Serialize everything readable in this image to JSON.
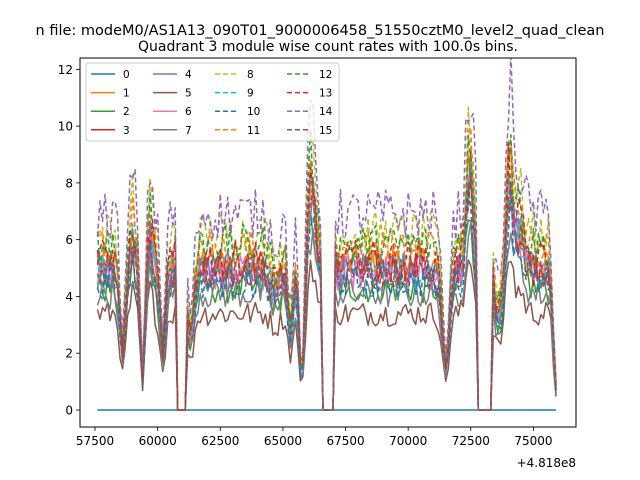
{
  "chart_data": {
    "type": "line",
    "suptitle": "n file: modeM0/AS1A13_090T01_9000006458_51550cztM0_level2_quad_clean",
    "title": "Quadrant 3 module wise count rates with 100.0s bins.",
    "xlabel": "",
    "ylabel": "",
    "x_offset_label": "+4.818e8",
    "xlim": [
      56900,
      76700
    ],
    "ylim": [
      -0.6,
      12.4
    ],
    "x_ticks": [
      57500,
      60000,
      62500,
      65000,
      67500,
      70000,
      72500,
      75000
    ],
    "x_tick_labels": [
      "57500",
      "60000",
      "62500",
      "65000",
      "67500",
      "70000",
      "72500",
      "75000"
    ],
    "y_ticks": [
      0,
      2,
      4,
      6,
      8,
      10,
      12
    ],
    "y_tick_labels": [
      "0",
      "2",
      "4",
      "6",
      "8",
      "10",
      "12"
    ],
    "grid": false,
    "legend_location": "top-left",
    "legend_columns": 4,
    "x_start": 57600,
    "x_end": 75900,
    "bin_seconds": 100,
    "gaps": [
      [
        60800,
        61100
      ],
      [
        66600,
        67000
      ],
      [
        72800,
        73300
      ]
    ],
    "features": [
      {
        "t": 58600,
        "w": 150,
        "m": -0.62
      },
      {
        "t": 59000,
        "w": 120,
        "m": 0.2
      },
      {
        "t": 59400,
        "w": 120,
        "m": -0.8
      },
      {
        "t": 59700,
        "w": 120,
        "m": 0.25
      },
      {
        "t": 60200,
        "w": 150,
        "m": -0.6
      },
      {
        "t": 61300,
        "w": 200,
        "m": -0.5
      },
      {
        "t": 64700,
        "w": 250,
        "m": -0.15
      },
      {
        "t": 65300,
        "w": 150,
        "m": -0.45
      },
      {
        "t": 65750,
        "w": 150,
        "m": -0.8
      },
      {
        "t": 66150,
        "w": 200,
        "m": 0.55
      },
      {
        "t": 71500,
        "w": 200,
        "m": -0.7
      },
      {
        "t": 72450,
        "w": 180,
        "m": 0.7
      },
      {
        "t": 73600,
        "w": 200,
        "m": -0.35
      },
      {
        "t": 74050,
        "w": 150,
        "m": 0.6
      },
      {
        "t": 74400,
        "w": 300,
        "m": 0.25
      },
      {
        "t": 75900,
        "w": 150,
        "m": -0.85
      }
    ],
    "series": [
      {
        "name": "0",
        "color": "#1f77b4",
        "dash": "solid",
        "level": 0.0
      },
      {
        "name": "1",
        "color": "#ff7f0e",
        "dash": "solid",
        "level": 5.2
      },
      {
        "name": "2",
        "color": "#2ca02c",
        "dash": "solid",
        "level": 4.3
      },
      {
        "name": "3",
        "color": "#d62728",
        "dash": "solid",
        "level": 5.0
      },
      {
        "name": "4",
        "color": "#9467bd",
        "dash": "solid",
        "level": 4.9
      },
      {
        "name": "5",
        "color": "#8c564b",
        "dash": "solid",
        "level": 3.4
      },
      {
        "name": "6",
        "color": "#e377c2",
        "dash": "solid",
        "level": 4.8
      },
      {
        "name": "7",
        "color": "#7f7f7f",
        "dash": "solid",
        "level": 4.1
      },
      {
        "name": "8",
        "color": "#bcbd22",
        "dash": "dashed",
        "level": 6.2
      },
      {
        "name": "9",
        "color": "#17becf",
        "dash": "dashed",
        "level": 5.0
      },
      {
        "name": "10",
        "color": "#1f77b4",
        "dash": "dashed",
        "level": 4.5
      },
      {
        "name": "11",
        "color": "#ff7f0e",
        "dash": "dashed",
        "level": 5.6
      },
      {
        "name": "12",
        "color": "#2ca02c",
        "dash": "dashed",
        "level": 5.8
      },
      {
        "name": "13",
        "color": "#d62728",
        "dash": "dashed",
        "level": 5.3
      },
      {
        "name": "14",
        "color": "#9467bd",
        "dash": "dashed",
        "level": 6.9
      },
      {
        "name": "15",
        "color": "#8c564b",
        "dash": "dashed",
        "level": 4.8
      }
    ]
  }
}
